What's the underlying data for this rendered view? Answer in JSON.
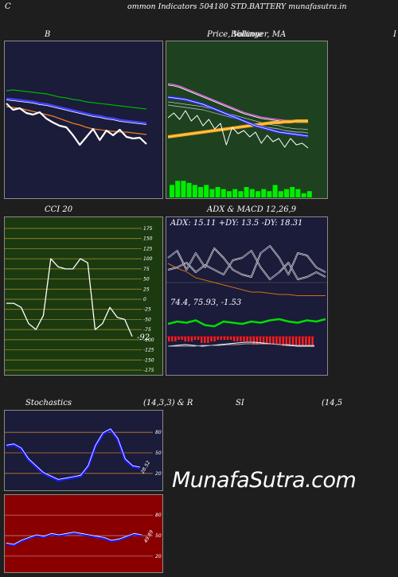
{
  "header": {
    "left_letter": "C",
    "title": "ommon  Indicators 504180  STD.BATTERY munafasutra.in"
  },
  "panel_b": {
    "title": "B"
  },
  "panel_price": {
    "title_1": "Price,  Volume",
    "title_2": "Bollinger,  MA",
    "right_edge": "I"
  },
  "panel_cci": {
    "title": "CCI 20",
    "ticks": [
      "175",
      "150",
      "125",
      "100",
      "75",
      "50",
      "25",
      "0",
      "-25",
      "-50",
      "-75",
      "-100",
      "-125",
      "-150",
      "-175"
    ],
    "current": "-92"
  },
  "panel_adx": {
    "title": "ADX  & MACD 12,26,9",
    "adx_readout": "ADX: 15.11 +DY: 13.5 -DY: 18.31",
    "macd_readout": "74.4,  75.93,  -1.53"
  },
  "panel_stoch": {
    "title_left": "Stochastics",
    "title_mid": "(14,3,3) & R",
    "title_si": "SI",
    "title_right": "(14,5",
    "stoch_ticks": [
      "80",
      "50",
      "20"
    ],
    "stoch_value": "28.52",
    "rsi_ticks": [
      "80",
      "50",
      "20"
    ],
    "rsi_value": "49.89"
  },
  "watermark": "MunafaSutra.com",
  "colors": {
    "page_bg": "#1e1e1e",
    "navy_panel": "#1b1b3a",
    "green_panel": "#1e4220",
    "cci_panel": "#1c3a10",
    "rsi_panel": "#8a0000",
    "band_orange": "#e8901e",
    "accent_blue": "#1a1aff",
    "accent_green": "#00cc00"
  },
  "chart_data": [
    {
      "type": "line",
      "title": "B",
      "series": [
        {
          "values": [
            108,
            112,
            105,
            109,
            96,
            102,
            88,
            108,
            86,
            94,
            82,
            78,
            74,
            63,
            70,
            52,
            66,
            58,
            72,
            60,
            61,
            50
          ]
        },
        {
          "values": [
            98,
            99,
            98,
            97,
            96,
            95,
            94,
            92,
            90,
            89,
            87,
            86,
            84,
            83,
            82,
            81,
            80,
            79,
            78,
            77,
            76,
            75
          ]
        },
        {
          "values": [
            88,
            87,
            86,
            85,
            84,
            82,
            81,
            79,
            77,
            75,
            73,
            71,
            69,
            67,
            66,
            64,
            63,
            61,
            60,
            59,
            58,
            57
          ]
        },
        {
          "values": [
            78,
            77,
            76,
            74,
            72,
            70,
            68,
            66,
            63,
            60,
            57,
            55,
            52,
            50,
            49,
            48,
            47,
            46,
            46,
            45,
            44,
            43
          ]
        },
        {
          "values": [
            82,
            74,
            76,
            70,
            68,
            71,
            63,
            58,
            54,
            52,
            42,
            30,
            40,
            50,
            36,
            48,
            42,
            49,
            40,
            38,
            39,
            31
          ]
        }
      ]
    },
    {
      "type": "line",
      "title": "Price,  Volume",
      "series": [
        {
          "values": [
            96,
            95,
            93,
            90,
            87,
            84,
            81,
            78,
            75,
            72,
            69,
            66,
            63,
            60,
            58,
            56,
            54,
            53,
            52,
            51,
            50,
            50,
            49,
            49,
            49
          ]
        },
        {
          "values": [
            80,
            79,
            78,
            77,
            75,
            73,
            71,
            68,
            65,
            62,
            59,
            56,
            53,
            50,
            47,
            44,
            42,
            40,
            38,
            36,
            35,
            34,
            33,
            32,
            31
          ]
        },
        {
          "values": [
            30,
            31,
            32,
            33,
            34,
            35,
            36,
            37,
            38,
            39,
            40,
            41,
            42,
            43,
            44,
            45,
            46,
            47,
            48,
            48,
            49,
            49,
            50,
            50,
            50
          ]
        },
        {
          "values": [
            70,
            69,
            68,
            67,
            66,
            65,
            64,
            62,
            60,
            58,
            56,
            54,
            52,
            50,
            48,
            46,
            44,
            42,
            41,
            40,
            38,
            37,
            36,
            36,
            35
          ]
        },
        {
          "values": [
            62,
            68,
            60,
            71,
            58,
            65,
            52,
            60,
            48,
            55,
            28,
            50,
            42,
            46,
            38,
            44,
            30,
            40,
            32,
            36,
            25,
            36,
            28,
            30,
            24
          ]
        },
        {
          "values": [
            6,
            8,
            8,
            7,
            6,
            5,
            6,
            4,
            5,
            4,
            3,
            4,
            3,
            5,
            4,
            3,
            4,
            3,
            6,
            3,
            4,
            5,
            4,
            2,
            3
          ]
        }
      ]
    },
    {
      "type": "line",
      "title": "CCI 20",
      "ylim": [
        -175,
        175
      ],
      "values": [
        -10,
        -10,
        -20,
        -60,
        -75,
        -40,
        100,
        80,
        75,
        75,
        100,
        90,
        -75,
        -60,
        -20,
        -45,
        -50,
        -92
      ]
    },
    {
      "type": "line",
      "title": "ADX  & MACD 12,26,9",
      "series": [
        {
          "name": "ADX",
          "values": [
            42,
            38,
            35,
            30,
            28,
            26,
            24,
            22,
            20,
            18,
            18,
            17,
            16,
            16,
            15,
            15,
            15,
            15
          ]
        },
        {
          "name": "+DY",
          "values": [
            20,
            22,
            26,
            18,
            24,
            20,
            16,
            28,
            30,
            36,
            22,
            12,
            18,
            26,
            12,
            14,
            18,
            14
          ]
        },
        {
          "name": "-DY",
          "values": [
            30,
            36,
            20,
            34,
            22,
            38,
            30,
            20,
            16,
            14,
            34,
            40,
            30,
            16,
            34,
            32,
            22,
            18
          ]
        },
        {
          "name": "MACD",
          "values": [
            74,
            75,
            76,
            75,
            74,
            75,
            76,
            77,
            78,
            79,
            79,
            78,
            77,
            76,
            75,
            74,
            74,
            74
          ]
        },
        {
          "name": "Signal",
          "values": [
            75,
            75,
            75,
            75,
            76,
            76,
            76,
            77,
            77,
            78,
            78,
            78,
            78,
            77,
            77,
            76,
            76,
            76
          ]
        },
        {
          "name": "Histogram",
          "values": [
            -1,
            0,
            1,
            0,
            -2,
            -1,
            0,
            0,
            1,
            1,
            1,
            0,
            -1,
            -1,
            -2,
            -2,
            -2,
            -2
          ]
        }
      ]
    },
    {
      "type": "line",
      "title": "Stochastics (14,3,3)",
      "ylim": [
        0,
        100
      ],
      "values": [
        60,
        62,
        56,
        40,
        30,
        20,
        15,
        10,
        12,
        14,
        16,
        30,
        60,
        78,
        84,
        70,
        40,
        30,
        28
      ]
    },
    {
      "type": "line",
      "title": "RSI (14)",
      "ylim": [
        0,
        100
      ],
      "values": [
        38,
        36,
        42,
        46,
        50,
        48,
        52,
        50,
        52,
        54,
        52,
        50,
        48,
        46,
        42,
        44,
        48,
        52,
        50
      ]
    }
  ]
}
